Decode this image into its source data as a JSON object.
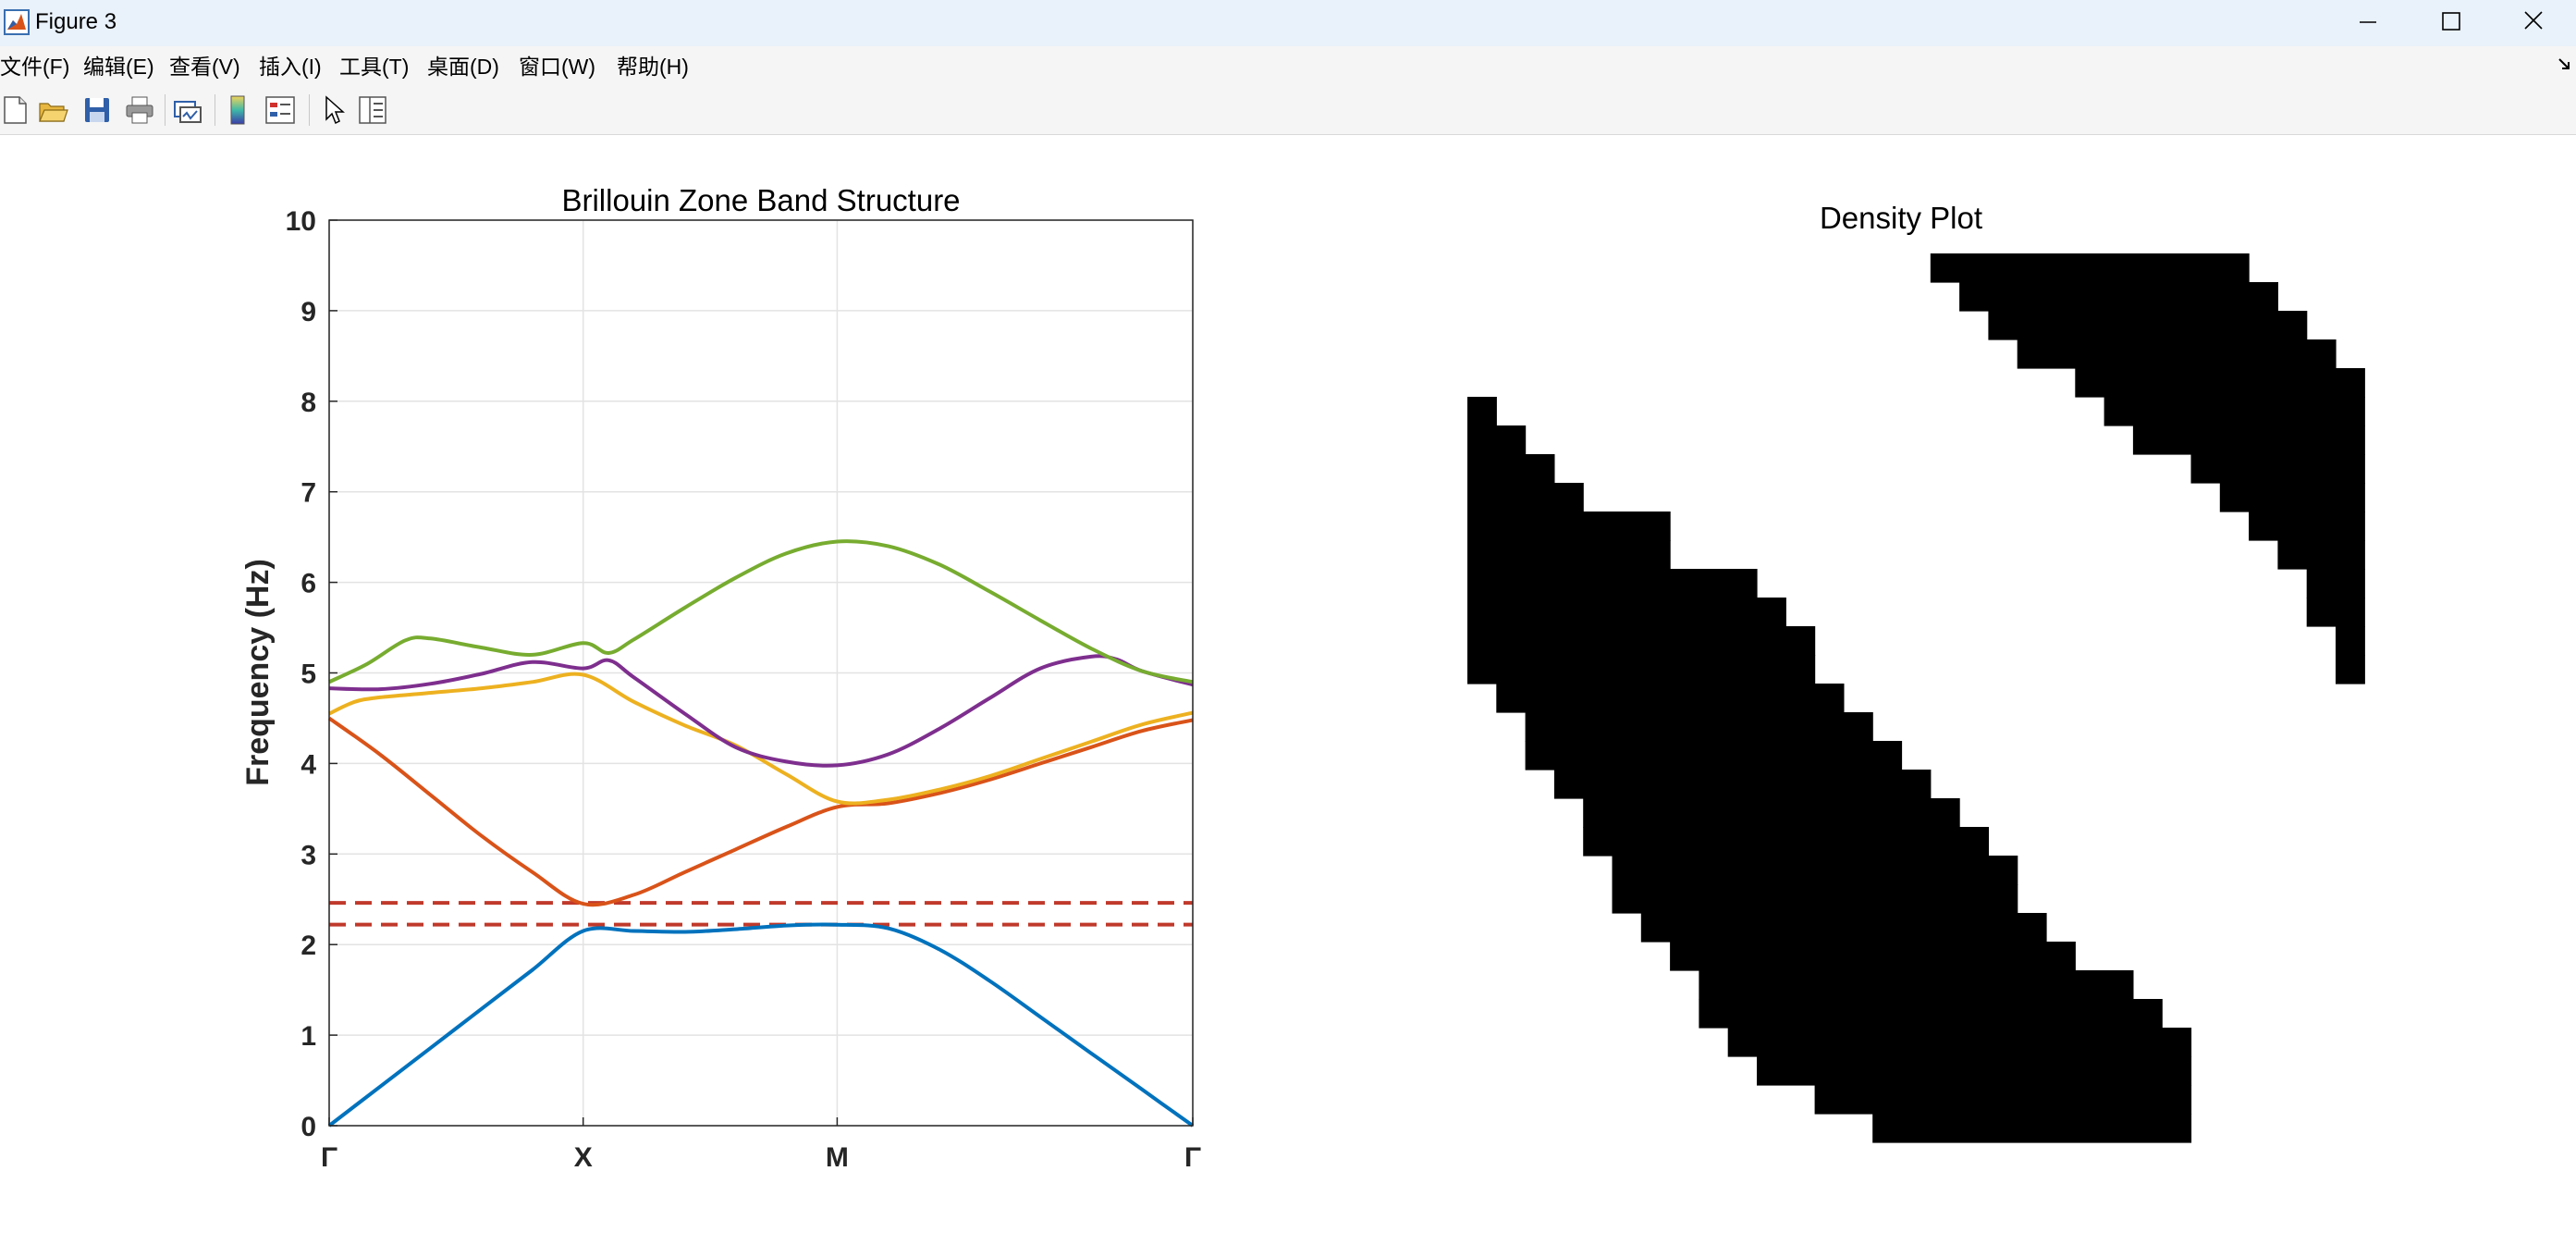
{
  "window": {
    "title": "Figure 3"
  },
  "menu": [
    {
      "label": "文件(F)"
    },
    {
      "label": "编辑(E)"
    },
    {
      "label": "查看(V)"
    },
    {
      "label": "插入(I)"
    },
    {
      "label": "工具(T)"
    },
    {
      "label": "桌面(D)"
    },
    {
      "label": "窗口(W)"
    },
    {
      "label": "帮助(H)"
    }
  ],
  "toolbar": {
    "icons": [
      "new-figure-icon",
      "open-file-icon",
      "save-icon",
      "print-icon",
      "link-plot-icon",
      "insert-colorbar-icon",
      "insert-legend-icon",
      "edit-plot-pointer-icon",
      "property-inspector-icon"
    ]
  },
  "chart_data": [
    {
      "type": "line",
      "title": "Brillouin Zone Band Structure",
      "xlabel": "",
      "ylabel": "Frequency (Hz)",
      "ylim": [
        0,
        10
      ],
      "yticks": [
        0,
        1,
        2,
        3,
        4,
        5,
        6,
        7,
        8,
        9,
        10
      ],
      "xticks": [
        {
          "pos": 0,
          "label": "Γ"
        },
        {
          "pos": 1,
          "label": "X"
        },
        {
          "pos": 2,
          "label": "M"
        },
        {
          "pos": 3.4,
          "label": "Γ"
        }
      ],
      "grid": true,
      "series": [
        {
          "color": "#0072BD",
          "x": [
            0,
            0.2,
            0.4,
            0.6,
            0.8,
            1.0,
            1.2,
            1.4,
            1.6,
            1.8,
            2.0,
            2.2,
            2.4,
            2.6,
            2.8,
            3.0,
            3.2,
            3.4
          ],
          "y": [
            0,
            0.43,
            0.86,
            1.29,
            1.72,
            2.15,
            2.15,
            2.14,
            2.17,
            2.21,
            2.22,
            2.18,
            1.95,
            1.6,
            1.2,
            0.8,
            0.4,
            0
          ]
        },
        {
          "color": "#D95319",
          "x": [
            0,
            0.2,
            0.4,
            0.6,
            0.8,
            1.0,
            1.2,
            1.4,
            1.6,
            1.8,
            2.0,
            2.2,
            2.4,
            2.6,
            2.8,
            3.0,
            3.2,
            3.4
          ],
          "y": [
            4.5,
            4.1,
            3.65,
            3.2,
            2.8,
            2.45,
            2.55,
            2.8,
            3.05,
            3.3,
            3.52,
            3.56,
            3.67,
            3.82,
            4.0,
            4.18,
            4.36,
            4.48
          ]
        },
        {
          "color": "#EDB120",
          "x": [
            0,
            0.1,
            0.2,
            0.4,
            0.6,
            0.8,
            1.0,
            1.2,
            1.4,
            1.6,
            1.8,
            2.0,
            2.2,
            2.4,
            2.6,
            2.8,
            3.0,
            3.2,
            3.4
          ],
          "y": [
            4.55,
            4.68,
            4.73,
            4.78,
            4.83,
            4.9,
            4.98,
            4.68,
            4.42,
            4.2,
            3.88,
            3.58,
            3.6,
            3.71,
            3.86,
            4.05,
            4.24,
            4.43,
            4.56
          ]
        },
        {
          "color": "#7E2F8E",
          "x": [
            0,
            0.2,
            0.4,
            0.6,
            0.8,
            1.0,
            1.1,
            1.2,
            1.4,
            1.6,
            1.8,
            2.0,
            2.2,
            2.4,
            2.6,
            2.8,
            3.0,
            3.1,
            3.2,
            3.4
          ],
          "y": [
            4.83,
            4.82,
            4.88,
            4.99,
            5.12,
            5.05,
            5.14,
            4.95,
            4.55,
            4.18,
            4.02,
            3.98,
            4.1,
            4.38,
            4.72,
            5.05,
            5.18,
            5.15,
            5.02,
            4.87
          ]
        },
        {
          "color": "#77AC30",
          "x": [
            0,
            0.15,
            0.3,
            0.4,
            0.6,
            0.8,
            1.0,
            1.1,
            1.2,
            1.4,
            1.6,
            1.8,
            2.0,
            2.2,
            2.4,
            2.6,
            2.8,
            3.0,
            3.2,
            3.4
          ],
          "y": [
            4.9,
            5.1,
            5.36,
            5.38,
            5.28,
            5.2,
            5.33,
            5.22,
            5.37,
            5.72,
            6.05,
            6.32,
            6.45,
            6.4,
            6.2,
            5.9,
            5.58,
            5.27,
            5.02,
            4.9
          ]
        }
      ],
      "hlines": [
        {
          "y": 2.46,
          "color": "#C0392B",
          "style": "dashed"
        },
        {
          "y": 2.22,
          "color": "#C0392B",
          "style": "dashed"
        }
      ]
    },
    {
      "type": "heatmap",
      "title": "Density Plot",
      "grid": false,
      "colors": {
        "filled": "#000000",
        "empty": "#ffffff"
      },
      "rows": [
        "0000000000000000000000000000000000000000000000000000000000000000",
        "0000000000000000111111111110000000000000000000000000000000000000",
        "0000000000000000011111111111000000000000000000000000000000000000",
        "0000000000000000001111111111100000000000000000000000000000000000",
        "0000000000000000000111111111110000000000000000000000000000000000",
        "0000000000000000000001111111111000000000000000000000000000000000",
        "1000000000000000000000111111111000000000000000000000000000000000",
        "1100000000000000000000011111111000000000000000000000000000000000",
        "1110000000000000000000000111111000000000000000000000000000000000",
        "1111000000000000000000000011111000000000000000000000000000000000",
        "1111111000000000000000000001111000000000000000000000000000000000",
        "1111111000000000000000000000111000000000000000000000000000000000",
        "1111111111000000000000000000011000000000000000000000000000000000",
        "1111111111100000000000000000011000000000000000000000000000000000",
        "1111111111110000000000000000001000000000000000000000000000000000",
        "1111111111110000000000000000001000000000000000000000000000000000",
        "0111111111111000000000000000000000000000000000000000000000000000",
        "0011111111111100000000000000000000000000000000000000000000000000",
        "0011111111111110000000000000000000000000000000000000000000000000",
        "0001111111111111000000000000000000000000000000000000000000000000",
        "0000111111111111100000000000000000000000000000000000000000000000",
        "0000111111111111110000000000000000000000000000000000000000000000",
        "0000011111111111111000000000000000000000000000000000000000000000",
        "0000011111111111111000000000000000000000000000000000000000000000",
        "0000001111111111111100000000000000000000000000000000000000000000",
        "0000000111111111111110000000000000000000000000000000000000000000",
        "0000000011111111111111100000000000000000000000000000000000000000",
        "0000000011111111111111110000000000000000000000000000000000000000",
        "0000000001111111111111111000000000000000000000000000000000000000",
        "0000000000111111111111111000000000000000000000000000000000000000",
        "0000000000001111111111111000000000000000000000000000000000000000",
        "0000000000000011111111111000000000000000000000000000000000000000"
      ]
    }
  ]
}
